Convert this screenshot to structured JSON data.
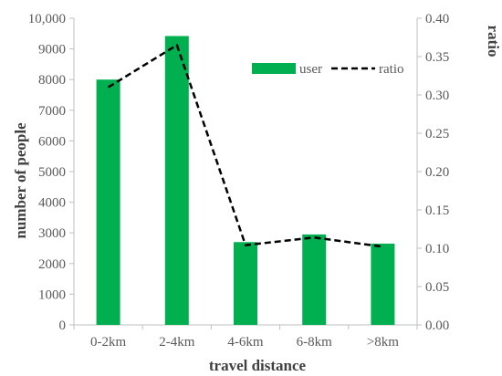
{
  "chart_data": {
    "type": "bar",
    "categories": [
      "0-2km",
      "2-4km",
      "4-6km",
      "6-8km",
      ">8km"
    ],
    "series": [
      {
        "name": "user",
        "type": "bar",
        "axis": "left",
        "color": "#00b050",
        "values": [
          8000,
          9420,
          2700,
          2950,
          2650
        ]
      },
      {
        "name": "ratio",
        "type": "line",
        "axis": "right",
        "style": "dashed",
        "color": "#000000",
        "values": [
          0.31,
          0.365,
          0.104,
          0.114,
          0.102
        ]
      }
    ],
    "xlabel": "travel distance",
    "ylabel": "number of people",
    "y2label": "ratio",
    "ylim": [
      0,
      10000
    ],
    "y2lim": [
      0,
      0.4
    ],
    "yticks": [
      "0",
      "1000",
      "2000",
      "3000",
      "4000",
      "5000",
      "6000",
      "7000",
      "8000",
      "9000",
      "10,000"
    ],
    "y2ticks": [
      "0.00",
      "0.05",
      "0.10",
      "0.15",
      "0.20",
      "0.25",
      "0.30",
      "0.35",
      "0.40"
    ],
    "legend": {
      "position": "top-right",
      "items": [
        "user",
        "ratio"
      ]
    },
    "grid": false
  }
}
